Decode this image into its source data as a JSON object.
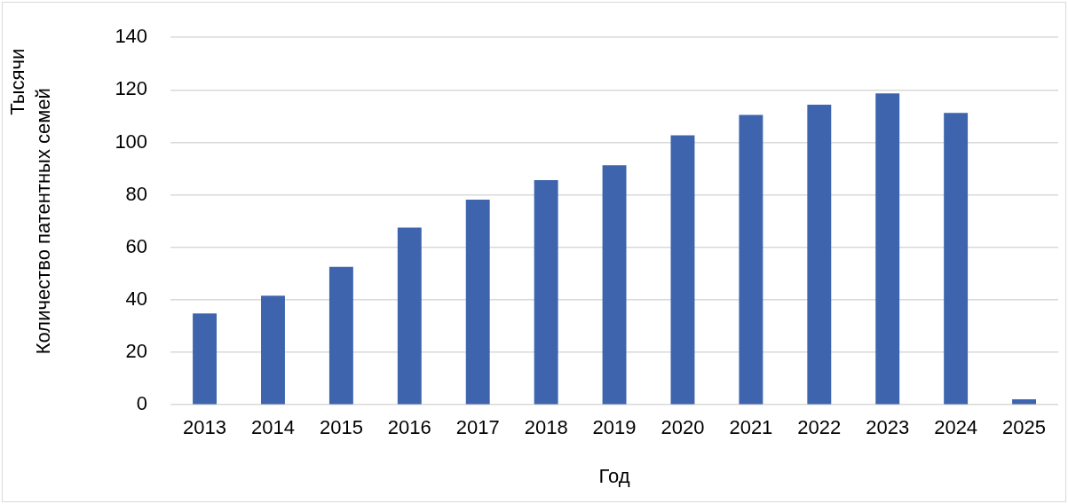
{
  "chart_data": {
    "type": "bar",
    "xlabel": "Год",
    "ylabel": "Количество патентных семей",
    "annotations": [
      "Тысячи"
    ],
    "categories": [
      "2013",
      "2014",
      "2015",
      "2016",
      "2017",
      "2018",
      "2019",
      "2020",
      "2021",
      "2022",
      "2023",
      "2024",
      "2025"
    ],
    "values": [
      34.8,
      41.6,
      52.6,
      67.5,
      78.2,
      85.6,
      91.3,
      102.7,
      110.5,
      114.4,
      118.7,
      111.2,
      2.1
    ],
    "color": "#3d64ad",
    "ylim": [
      0,
      140
    ],
    "yticks": [
      0,
      20,
      40,
      60,
      80,
      100,
      120,
      140
    ],
    "grid": "y",
    "legend": false
  }
}
